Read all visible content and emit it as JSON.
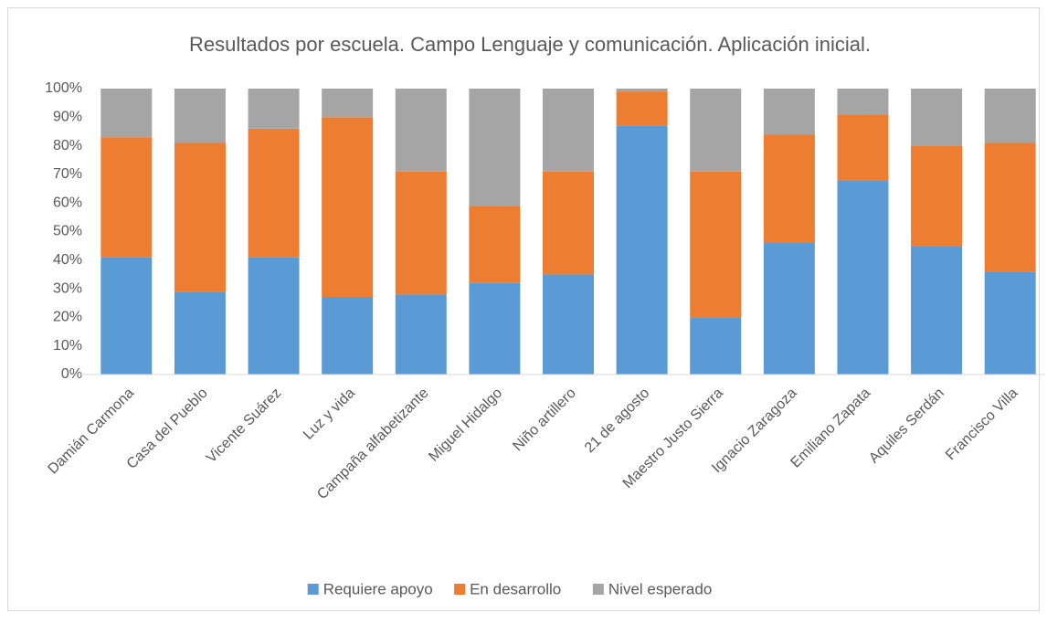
{
  "chart_data": {
    "type": "stacked_bar",
    "title": "Resultados por escuela. Campo Lenguaje y comunicación. Aplicación inicial.",
    "categories": [
      "Damián Carmona",
      "Casa del Pueblo",
      "Vicente Suárez",
      "Luz y vida",
      "Campaña alfabetizante",
      "Miguel Hidalgo",
      "Niño artillero",
      "21 de agosto",
      "Maestro Justo Sierra",
      "Ignacio Zaragoza",
      "Emiliano Zapata",
      "Aquiles Serdán",
      "Francisco Villa"
    ],
    "series": [
      {
        "name": "Requiere apoyo",
        "color": "#5b9bd5",
        "values": [
          41,
          29,
          41,
          27,
          28,
          32,
          35,
          87,
          20,
          46,
          68,
          45,
          36
        ]
      },
      {
        "name": "En desarrollo",
        "color": "#ed7d31",
        "values": [
          42,
          52,
          45,
          63,
          43,
          27,
          36,
          12,
          51,
          38,
          23,
          35,
          45
        ]
      },
      {
        "name": "Nivel esperado",
        "color": "#a5a5a5",
        "values": [
          17,
          19,
          14,
          10,
          29,
          41,
          29,
          1,
          29,
          16,
          9,
          20,
          19
        ]
      }
    ],
    "ylim": [
      0,
      100
    ],
    "yticks": [
      {
        "value": 0,
        "label": "0%"
      },
      {
        "value": 10,
        "label": "10%"
      },
      {
        "value": 20,
        "label": "20%"
      },
      {
        "value": 30,
        "label": "30%"
      },
      {
        "value": 40,
        "label": "40%"
      },
      {
        "value": 50,
        "label": "50%"
      },
      {
        "value": 60,
        "label": "60%"
      },
      {
        "value": 70,
        "label": "70%"
      },
      {
        "value": 80,
        "label": "80%"
      },
      {
        "value": 90,
        "label": "90%"
      },
      {
        "value": 100,
        "label": "100%"
      }
    ],
    "grid": false,
    "legend": "bottom"
  }
}
